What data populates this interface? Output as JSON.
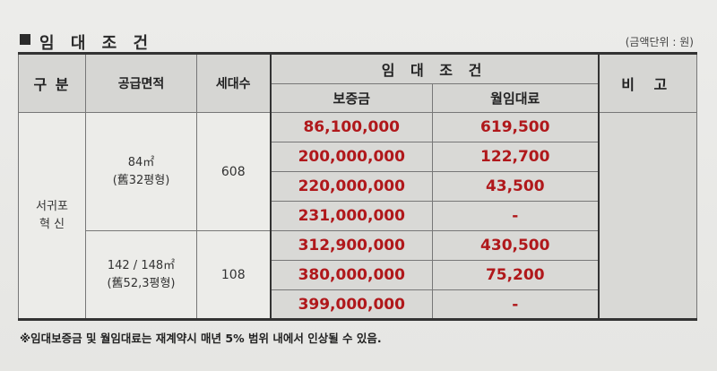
{
  "section_title": "임 대 조 건",
  "unit_note": "(금액단위 : 원)",
  "headers": {
    "division": "구 분",
    "supply_area": "공급면적",
    "households": "세대수",
    "lease_terms": "임 대 조 건",
    "deposit": "보증금",
    "monthly_rent": "월임대료",
    "remarks": "비 고"
  },
  "region": {
    "line1": "서귀포",
    "line2": "혁 신"
  },
  "groups": [
    {
      "area_line1": "84㎡",
      "area_line2": "(舊32평형)",
      "households": "608",
      "rows": [
        {
          "deposit": "86,100,000",
          "rent": "619,500"
        },
        {
          "deposit": "200,000,000",
          "rent": "122,700"
        },
        {
          "deposit": "220,000,000",
          "rent": "43,500"
        },
        {
          "deposit": "231,000,000",
          "rent": "-"
        }
      ]
    },
    {
      "area_line1": "142 / 148㎡",
      "area_line2": "(舊52,3평형)",
      "households": "108",
      "rows": [
        {
          "deposit": "312,900,000",
          "rent": "430,500"
        },
        {
          "deposit": "380,000,000",
          "rent": "75,200"
        },
        {
          "deposit": "399,000,000",
          "rent": "-"
        }
      ]
    }
  ],
  "footnote": "※임대보증금 및 월임대료는 재계약시 매년 5% 범위 내에서 인상될 수 있음."
}
